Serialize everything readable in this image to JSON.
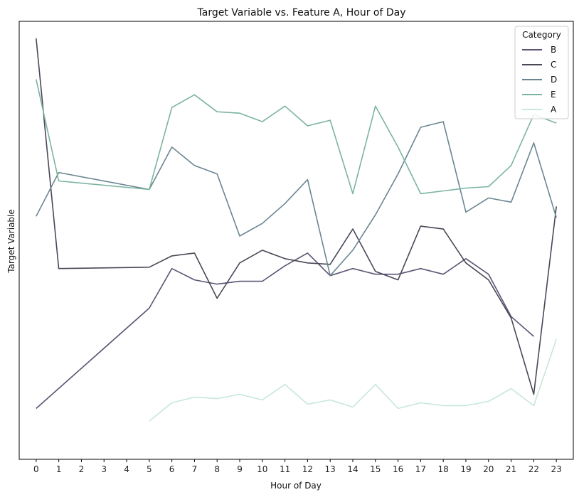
{
  "chart_data": {
    "type": "line",
    "title": "Target Variable vs. Feature A, Hour of Day",
    "xlabel": "Hour of Day",
    "ylabel": "Target Variable",
    "x_ticks": [
      0,
      1,
      2,
      3,
      4,
      5,
      6,
      7,
      8,
      9,
      10,
      11,
      12,
      13,
      14,
      15,
      16,
      17,
      18,
      19,
      20,
      21,
      22,
      23
    ],
    "xlim": [
      -0.75,
      23.75
    ],
    "ylim": [
      -1.6,
      29.4
    ],
    "y_tick_labels_shown": false,
    "grid": false,
    "legend": {
      "title": "Category",
      "placement": "top-right"
    },
    "series": [
      {
        "name": "B",
        "color": "#5d5273",
        "points": [
          [
            0,
            2.0
          ],
          [
            5,
            9.1
          ],
          [
            6,
            11.9
          ],
          [
            7,
            11.1
          ],
          [
            8,
            10.8
          ],
          [
            9,
            11.0
          ],
          [
            10,
            11.0
          ],
          [
            11,
            12.1
          ],
          [
            12,
            13.0
          ],
          [
            13,
            11.4
          ],
          [
            14,
            11.9
          ],
          [
            15,
            11.5
          ],
          [
            16,
            11.5
          ],
          [
            17,
            11.9
          ],
          [
            18,
            11.5
          ],
          [
            19,
            12.6
          ],
          [
            20,
            11.5
          ],
          [
            21,
            8.5
          ],
          [
            22,
            7.1
          ]
        ]
      },
      {
        "name": "C",
        "color": "#4a4757",
        "points": [
          [
            0,
            28.2
          ],
          [
            1,
            11.9
          ],
          [
            5,
            12.0
          ],
          [
            6,
            12.8
          ],
          [
            7,
            13.0
          ],
          [
            8,
            9.8
          ],
          [
            9,
            12.3
          ],
          [
            10,
            13.2
          ],
          [
            11,
            12.6
          ],
          [
            12,
            12.3
          ],
          [
            13,
            12.2
          ],
          [
            14,
            14.7
          ],
          [
            15,
            11.7
          ],
          [
            16,
            11.1
          ],
          [
            17,
            14.9
          ],
          [
            18,
            14.7
          ],
          [
            19,
            12.3
          ],
          [
            20,
            11.1
          ],
          [
            21,
            8.4
          ],
          [
            22,
            3.0
          ],
          [
            23,
            16.3
          ]
        ]
      },
      {
        "name": "D",
        "color": "#6a8691",
        "points": [
          [
            0,
            15.6
          ],
          [
            1,
            18.7
          ],
          [
            5,
            17.5
          ],
          [
            6,
            20.5
          ],
          [
            7,
            19.2
          ],
          [
            8,
            18.6
          ],
          [
            9,
            14.2
          ],
          [
            10,
            15.1
          ],
          [
            11,
            16.5
          ],
          [
            12,
            18.2
          ],
          [
            13,
            11.4
          ],
          [
            14,
            13.2
          ],
          [
            15,
            15.7
          ],
          [
            16,
            18.6
          ],
          [
            17,
            21.9
          ],
          [
            18,
            22.3
          ],
          [
            19,
            15.9
          ],
          [
            20,
            16.9
          ],
          [
            21,
            16.6
          ],
          [
            22,
            20.8
          ],
          [
            23,
            15.5
          ]
        ]
      },
      {
        "name": "E",
        "color": "#7bb49f",
        "points": [
          [
            0,
            25.3
          ],
          [
            1,
            18.1
          ],
          [
            5,
            17.5
          ],
          [
            6,
            23.3
          ],
          [
            7,
            24.2
          ],
          [
            8,
            23.0
          ],
          [
            9,
            22.9
          ],
          [
            10,
            22.3
          ],
          [
            11,
            23.4
          ],
          [
            12,
            22.0
          ],
          [
            13,
            22.4
          ],
          [
            14,
            17.2
          ],
          [
            15,
            23.4
          ],
          [
            16,
            20.5
          ],
          [
            17,
            17.2
          ],
          [
            18,
            17.4
          ],
          [
            19,
            17.6
          ],
          [
            20,
            17.7
          ],
          [
            21,
            19.2
          ],
          [
            22,
            22.8
          ],
          [
            23,
            22.2
          ]
        ]
      },
      {
        "name": "A",
        "color": "#c6e8d8",
        "points": [
          [
            5,
            1.1
          ],
          [
            6,
            2.4
          ],
          [
            7,
            2.8
          ],
          [
            8,
            2.7
          ],
          [
            9,
            3.0
          ],
          [
            10,
            2.6
          ],
          [
            11,
            3.7
          ],
          [
            12,
            2.3
          ],
          [
            13,
            2.6
          ],
          [
            14,
            2.1
          ],
          [
            15,
            3.7
          ],
          [
            16,
            2.0
          ],
          [
            17,
            2.4
          ],
          [
            18,
            2.2
          ],
          [
            19,
            2.2
          ],
          [
            20,
            2.5
          ],
          [
            21,
            3.4
          ],
          [
            22,
            2.2
          ],
          [
            23,
            6.9
          ]
        ]
      }
    ]
  }
}
